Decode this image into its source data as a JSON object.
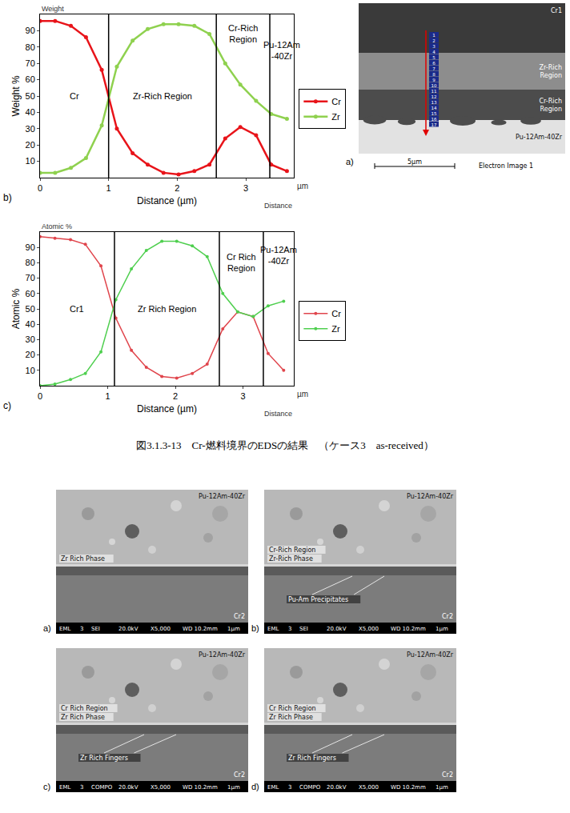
{
  "chart_data": [
    {
      "type": "line",
      "panel_label": "b)",
      "y_title": "Weight %",
      "x_title": "Distance (µm)",
      "corner_label": "Weight",
      "end_label": "Distance",
      "x_unit_label": "µm",
      "x": [
        0,
        0.22,
        0.45,
        0.67,
        0.9,
        1.12,
        1.35,
        1.57,
        1.8,
        2.02,
        2.25,
        2.47,
        2.7,
        2.92,
        3.15,
        3.37,
        3.6
      ],
      "xlim": [
        0,
        3.7
      ],
      "xticks": [
        0,
        1,
        2,
        3
      ],
      "ylim": [
        0,
        100
      ],
      "yticks": [
        10,
        20,
        30,
        40,
        50,
        60,
        70,
        80,
        90
      ],
      "series": [
        {
          "name": "Cr",
          "color": "#e8141a",
          "values": [
            96,
            96,
            93,
            86,
            66,
            30,
            15,
            8,
            3,
            2,
            4,
            8,
            24,
            31,
            26,
            8,
            4
          ]
        },
        {
          "name": "Zr",
          "color": "#8fd14f",
          "values": [
            3,
            3,
            6,
            12,
            32,
            68,
            84,
            91,
            94,
            94,
            93,
            88,
            70,
            57,
            47,
            39,
            36
          ]
        }
      ],
      "regions": [
        {
          "label": "Cr",
          "end": 1.0
        },
        {
          "label": "Zr-Rich Region",
          "end": 2.57
        },
        {
          "label": "Cr-Rich Region",
          "end": 3.35
        },
        {
          "label": "Pu-12Am\n-40Zr"
        }
      ],
      "legend": "right",
      "grid": false,
      "marker": "circle"
    },
    {
      "type": "line",
      "panel_label": "c)",
      "y_title": "Atomic %",
      "x_title": "Distance (µm)",
      "corner_label": "Atomic %",
      "end_label": "Distance",
      "x_unit_label": "µm",
      "x": [
        0,
        0.22,
        0.45,
        0.67,
        0.9,
        1.12,
        1.35,
        1.57,
        1.8,
        2.02,
        2.25,
        2.47,
        2.7,
        2.92,
        3.15,
        3.37,
        3.6
      ],
      "xlim": [
        0,
        3.75
      ],
      "xticks": [
        0,
        1,
        2,
        3
      ],
      "ylim": [
        0,
        100
      ],
      "yticks": [
        10,
        20,
        30,
        40,
        50,
        60,
        70,
        80,
        90
      ],
      "series": [
        {
          "name": "Cr",
          "color": "#e0454c",
          "values": [
            97,
            96,
            95,
            92,
            78,
            44,
            23,
            12,
            6,
            5,
            8,
            14,
            37,
            48,
            45,
            21,
            10
          ]
        },
        {
          "name": "Zr",
          "color": "#4fcf4f",
          "values": [
            0,
            1,
            4,
            8,
            22,
            56,
            76,
            88,
            94,
            94,
            91,
            84,
            60,
            48,
            45,
            52,
            55
          ]
        }
      ],
      "regions": [
        {
          "label": "Cr1",
          "end": 1.1
        },
        {
          "label": "Zr Rich Region",
          "end": 2.65
        },
        {
          "label": "Cr Rich Region",
          "end": 3.3
        },
        {
          "label": "Pu-12Am\n-40Zr"
        }
      ],
      "legend": "right",
      "grid": false,
      "marker": "circle"
    }
  ],
  "sem_image": {
    "panel_label": "a)",
    "labels": [
      "Cr1",
      "Zr-Rich Region",
      "Cr-Rich Region",
      "Pu-12Am-40Zr"
    ],
    "scan_points": [
      "1",
      "2",
      "3",
      "4",
      "5",
      "6",
      "7",
      "8",
      "9",
      "10",
      "11",
      "12",
      "13",
      "14",
      "15",
      "16",
      "17"
    ],
    "scale_bar": "5µm",
    "image_title": "Electron Image 1"
  },
  "caption": "図3.1.3-13　Cr-燃料境界のEDSの結果　（ケース3　as-received）",
  "micrographs": [
    {
      "panel_label": "a)",
      "sample": "Pu-12Am-40Zr",
      "regions": [
        "Zr Rich Phase"
      ],
      "substrate": "Cr2",
      "info_bar": [
        "EML",
        "3",
        "SEI",
        "20.0kV",
        "X5,000",
        "WD 10.2mm",
        "1µm"
      ]
    },
    {
      "panel_label": "b)",
      "sample": "Pu-12Am-40Zr",
      "regions": [
        "Cr-Rich Region",
        "Zr-Rich Phase"
      ],
      "pointers": [
        "Pu-Am Precipitates"
      ],
      "substrate": "Cr2",
      "info_bar": [
        "EML",
        "3",
        "SEI",
        "20.0kV",
        "X5,000",
        "WD 10.2mm",
        "1µm"
      ]
    },
    {
      "panel_label": "c)",
      "sample": "Pu-12Am-40Zr",
      "regions": [
        "Cr Rich Region",
        "Zr Rich Phase"
      ],
      "pointers": [
        "Zr Rich Fingers"
      ],
      "substrate": "Cr2",
      "info_bar": [
        "EML",
        "3",
        "COMPO",
        "20.0kV",
        "X5,000",
        "WD 10.2mm",
        "1µm"
      ]
    },
    {
      "panel_label": "d)",
      "sample": "Pu-12Am-40Zr",
      "regions": [
        "Cr Rich Region",
        "Zr Rich Phase"
      ],
      "pointers": [
        "Zr Rich Fingers"
      ],
      "substrate": "Cr2",
      "info_bar": [
        "EML",
        "3",
        "COMPO",
        "20.0kV",
        "X5,000",
        "WD 10.2mm",
        "1µm"
      ]
    }
  ]
}
